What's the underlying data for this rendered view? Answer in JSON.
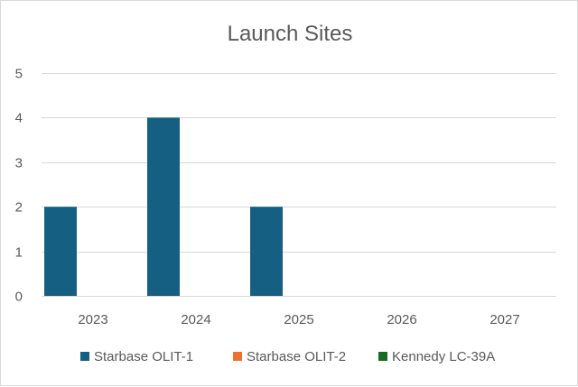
{
  "chart_data": {
    "type": "bar",
    "title": "Launch Sites",
    "xlabel": "",
    "ylabel": "",
    "categories": [
      "2023",
      "2024",
      "2025",
      "2026",
      "2027"
    ],
    "ylim": [
      0,
      5
    ],
    "yticks": [
      0,
      1,
      2,
      3,
      4,
      5
    ],
    "grid": true,
    "legend_position": "bottom",
    "series": [
      {
        "name": "Starbase OLIT-1",
        "color": "#156082",
        "values": [
          2,
          4,
          2,
          0,
          0
        ]
      },
      {
        "name": "Starbase OLIT-2",
        "color": "#E97132",
        "values": [
          0,
          0,
          0,
          0,
          0
        ]
      },
      {
        "name": "Kennedy LC-39A",
        "color": "#196B24",
        "values": [
          0,
          0,
          0,
          0,
          0
        ]
      }
    ]
  }
}
